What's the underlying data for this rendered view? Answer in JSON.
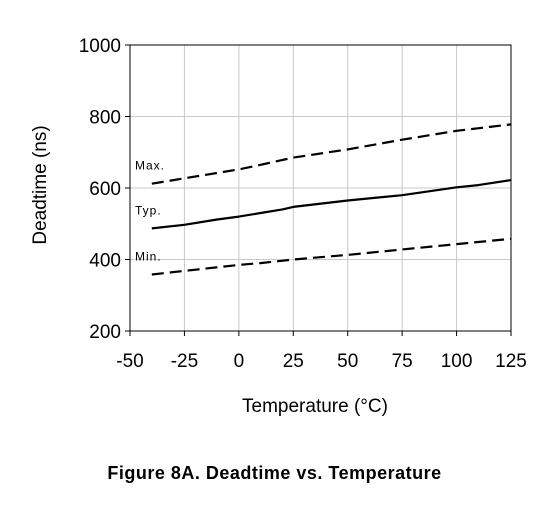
{
  "caption": "Figure 8A. Deadtime vs. Temperature",
  "chart_data": {
    "type": "line",
    "title": "",
    "xlabel": "Temperature (°C)",
    "ylabel": "Deadtime (ns)",
    "xlim": [
      -50,
      125
    ],
    "ylim": [
      200,
      1000
    ],
    "xticks": [
      -50,
      -25,
      0,
      25,
      50,
      75,
      100,
      125
    ],
    "yticks": [
      200,
      400,
      600,
      800,
      1000
    ],
    "grid": true,
    "series": [
      {
        "name": "Max.",
        "style": "dashed",
        "x": [
          -40,
          -25,
          0,
          10,
          25,
          50,
          75,
          100,
          125
        ],
        "y": [
          612,
          627,
          652,
          665,
          685,
          708,
          735,
          760,
          778
        ]
      },
      {
        "name": "Typ.",
        "style": "solid",
        "x": [
          -40,
          -25,
          -10,
          0,
          10,
          20,
          25,
          50,
          75,
          100,
          110,
          125
        ],
        "y": [
          487,
          497,
          512,
          520,
          530,
          540,
          547,
          565,
          580,
          602,
          608,
          622
        ]
      },
      {
        "name": "Min.",
        "style": "dashed",
        "x": [
          -40,
          -25,
          0,
          10,
          25,
          50,
          75,
          100,
          125
        ],
        "y": [
          358,
          368,
          385,
          390,
          400,
          413,
          428,
          443,
          458
        ]
      }
    ],
    "colors": {
      "line": "#000000",
      "grid": "#c8c8c8",
      "axis": "#000000"
    }
  }
}
